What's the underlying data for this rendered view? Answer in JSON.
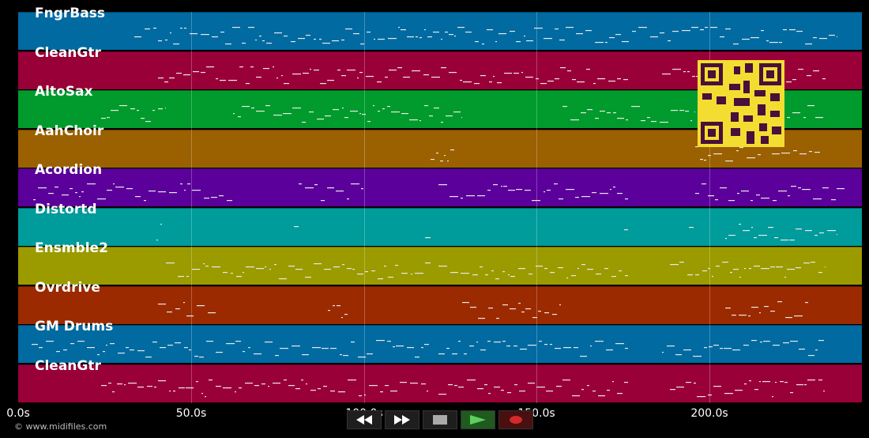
{
  "tracks": [
    {
      "name": "FngrBass",
      "color": "#006aa1"
    },
    {
      "name": "CleanGtr",
      "color": "#9a0038"
    },
    {
      "name": "AltoSax",
      "color": "#009b2c"
    },
    {
      "name": "AahChoir",
      "color": "#9b6000"
    },
    {
      "name": "Acordion",
      "color": "#5b009b"
    },
    {
      "name": "Distortd",
      "color": "#009b9b"
    },
    {
      "name": "Ensmble2",
      "color": "#9b9b00"
    },
    {
      "name": "Ovrdrive",
      "color": "#9b2a00"
    },
    {
      "name": "GM Drums",
      "color": "#006aa1"
    },
    {
      "name": "CleanGtr",
      "color": "#9a0038"
    }
  ],
  "timeline": {
    "ticks": [
      "0.0s",
      "50.0s",
      "100.0s",
      "150.0s",
      "200.0s"
    ]
  },
  "footer": {
    "copyright": "© www.midifiles.com"
  },
  "transport": {
    "buttons": [
      "rewind-icon",
      "fast-forward-icon",
      "stop-icon",
      "play-icon",
      "record-icon"
    ]
  },
  "overlay": {
    "qr": "qr-code-icon"
  }
}
